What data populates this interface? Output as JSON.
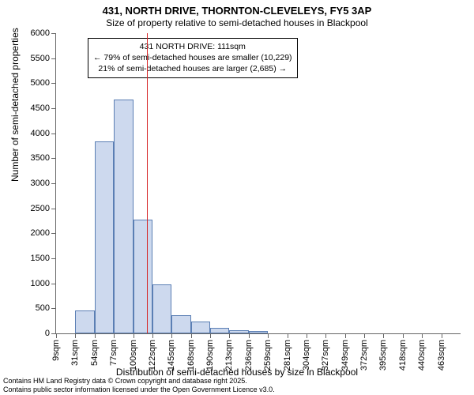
{
  "chart": {
    "type": "histogram",
    "title_main": "431, NORTH DRIVE, THORNTON-CLEVELEYS, FY5 3AP",
    "title_sub": "Size of property relative to semi-detached houses in Blackpool",
    "title_fontsize": 13,
    "subtitle_fontsize": 12,
    "xlabel": "Distribution of semi-detached houses by size in Blackpool",
    "ylabel": "Number of semi-detached properties",
    "label_fontsize": 12,
    "tick_fontsize": 11,
    "background_color": "#ffffff",
    "bar_fill": "#cdd9ee",
    "bar_border": "#5b7fb4",
    "axis_color": "#666666",
    "marker_color": "#d62728",
    "ylim": [
      0,
      6000
    ],
    "ytick_step": 500,
    "xticks": [
      "9sqm",
      "31sqm",
      "54sqm",
      "77sqm",
      "100sqm",
      "122sqm",
      "145sqm",
      "168sqm",
      "190sqm",
      "213sqm",
      "236sqm",
      "259sqm",
      "281sqm",
      "304sqm",
      "327sqm",
      "349sqm",
      "372sqm",
      "395sqm",
      "418sqm",
      "440sqm",
      "463sqm"
    ],
    "values": [
      0,
      460,
      3830,
      4680,
      2280,
      980,
      370,
      230,
      110,
      70,
      40,
      0,
      0,
      0,
      0,
      0,
      0,
      0,
      0,
      0,
      0
    ],
    "marker_value": 111,
    "x_min": 9,
    "x_max": 463,
    "annotation": {
      "line1": "431 NORTH DRIVE: 111sqm",
      "line2": "← 79% of semi-detached houses are smaller (10,229)",
      "line3": "21% of semi-detached houses are larger (2,685) →"
    },
    "footer1": "Contains HM Land Registry data © Crown copyright and database right 2025.",
    "footer2": "Contains public sector information licensed under the Open Government Licence v3.0."
  }
}
